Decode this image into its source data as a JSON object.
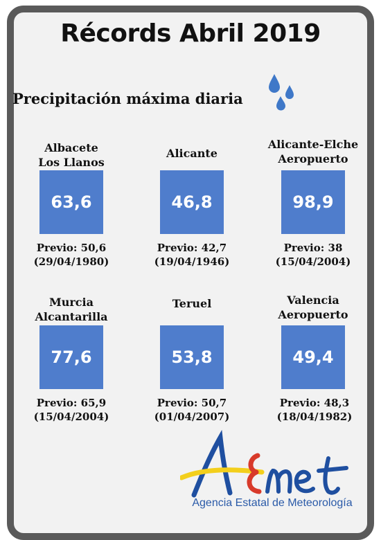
{
  "title": "Récords Abril 2019",
  "subtitle": "Precipitación máxima diaria",
  "stations": [
    {
      "name_line1": "Albacete",
      "name_line2": "Los Llanos",
      "value": "63,6",
      "previous": "Previo: 50,6",
      "previous_date": "(29/04/1980)"
    },
    {
      "name_line1": "Alicante",
      "name_line2": "",
      "value": "46,8",
      "previous": "Previo: 42,7",
      "previous_date": "(19/04/1946)"
    },
    {
      "name_line1": "Alicante-Elche",
      "name_line2": "Aeropuerto",
      "value": "98,9",
      "previous": "Previo: 38",
      "previous_date": "(15/04/2004)"
    },
    {
      "name_line1": "Murcia",
      "name_line2": "Alcantarilla",
      "value": "77,6",
      "previous": "Previo: 65,9",
      "previous_date": "(15/04/2004)"
    },
    {
      "name_line1": "Teruel",
      "name_line2": "",
      "value": "53,8",
      "previous": "Previo: 50,7",
      "previous_date": "(01/04/2007)"
    },
    {
      "name_line1": "Valencia",
      "name_line2": "Aeropuerto",
      "value": "49,4",
      "previous": "Previo: 48,3",
      "previous_date": "(18/04/1982)"
    }
  ],
  "logo": {
    "brand": "AEMet",
    "tagline": "Agencia Estatal de Meteorología"
  },
  "colors": {
    "value_box": "#4f7dcc",
    "frame": "#5a5a5a",
    "drops": "#3f78c8"
  },
  "icons": [
    "raindrops-icon"
  ]
}
